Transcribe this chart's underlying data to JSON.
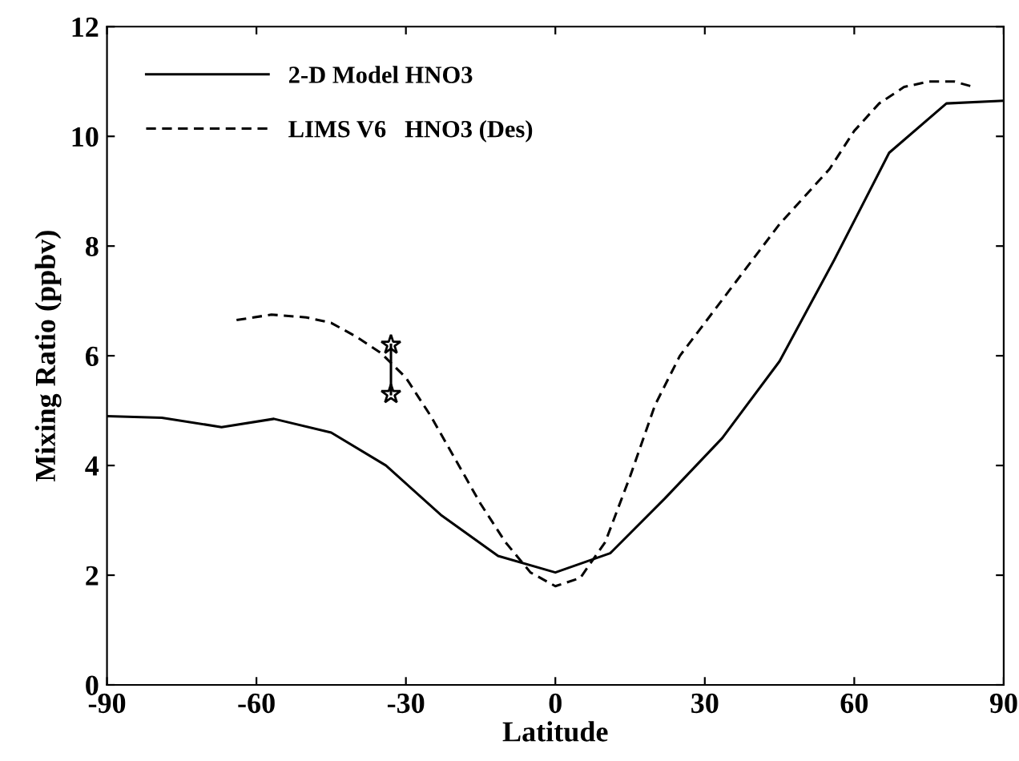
{
  "chart_data": {
    "type": "line",
    "xlabel": "Latitude",
    "ylabel": "Mixing Ratio (ppbv)",
    "xlim": [
      -90,
      90
    ],
    "xticks": [
      -90,
      -60,
      -30,
      0,
      30,
      60,
      90
    ],
    "ylim": [
      0,
      12
    ],
    "yticks": [
      0,
      2,
      4,
      6,
      8,
      10,
      12
    ],
    "grid": false,
    "legend": "top left",
    "series": [
      {
        "name": "2-D Model HNO3",
        "color": "#000000",
        "line_style": "solid",
        "marker": "none",
        "x": [
          -90,
          -79,
          -67,
          -56.5,
          -45,
          -34,
          -23,
          -11.5,
          0,
          11,
          22,
          33.5,
          45,
          56,
          67,
          78.5,
          90
        ],
        "values": [
          4.9,
          4.87,
          4.7,
          4.85,
          4.6,
          4.0,
          3.1,
          2.35,
          2.05,
          2.4,
          3.4,
          4.5,
          5.9,
          7.75,
          9.7,
          10.6,
          10.65
        ]
      },
      {
        "name": "LIMS V6   HNO3 (Des)",
        "color": "#000000",
        "line_style": "dashed",
        "marker": "none",
        "x": [
          -64,
          -57,
          -50,
          -45,
          -40,
          -35,
          -30,
          -25,
          -20,
          -15,
          -10,
          -5,
          0,
          5,
          10,
          15,
          20,
          25,
          30,
          35,
          40,
          45,
          50,
          55,
          60,
          65,
          70,
          75,
          80,
          84
        ],
        "values": [
          6.65,
          6.75,
          6.7,
          6.6,
          6.35,
          6.05,
          5.6,
          4.9,
          4.1,
          3.3,
          2.6,
          2.05,
          1.8,
          1.95,
          2.6,
          3.8,
          5.1,
          6.0,
          6.6,
          7.2,
          7.8,
          8.4,
          8.9,
          9.4,
          10.1,
          10.6,
          10.9,
          11.0,
          11.0,
          10.9
        ]
      },
      {
        "color": "#000000",
        "line_style": "solid",
        "marker": "star",
        "x": [
          -33,
          -33
        ],
        "values": [
          5.3,
          6.2
        ]
      }
    ]
  }
}
